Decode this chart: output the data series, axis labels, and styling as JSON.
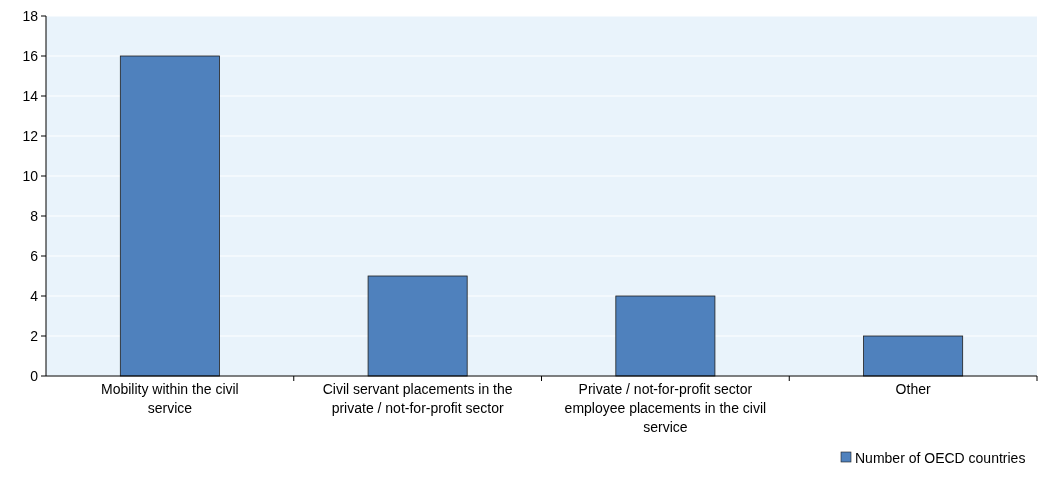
{
  "chart_data": {
    "type": "bar",
    "categories": [
      "Mobility within the civil service",
      "Civil servant placements in the private / not-for-profit sector",
      "Private / not-for-profit sector employee placements in the civil service",
      "Other"
    ],
    "series": [
      {
        "name": "Number of OECD countries",
        "color": "#4f81bd",
        "values": [
          16,
          5,
          4,
          2
        ]
      }
    ],
    "ylim": [
      0,
      18
    ],
    "yticks": [
      0,
      2,
      4,
      6,
      8,
      10,
      12,
      14,
      16,
      18
    ],
    "grid": "y",
    "legend": "bottom right"
  }
}
